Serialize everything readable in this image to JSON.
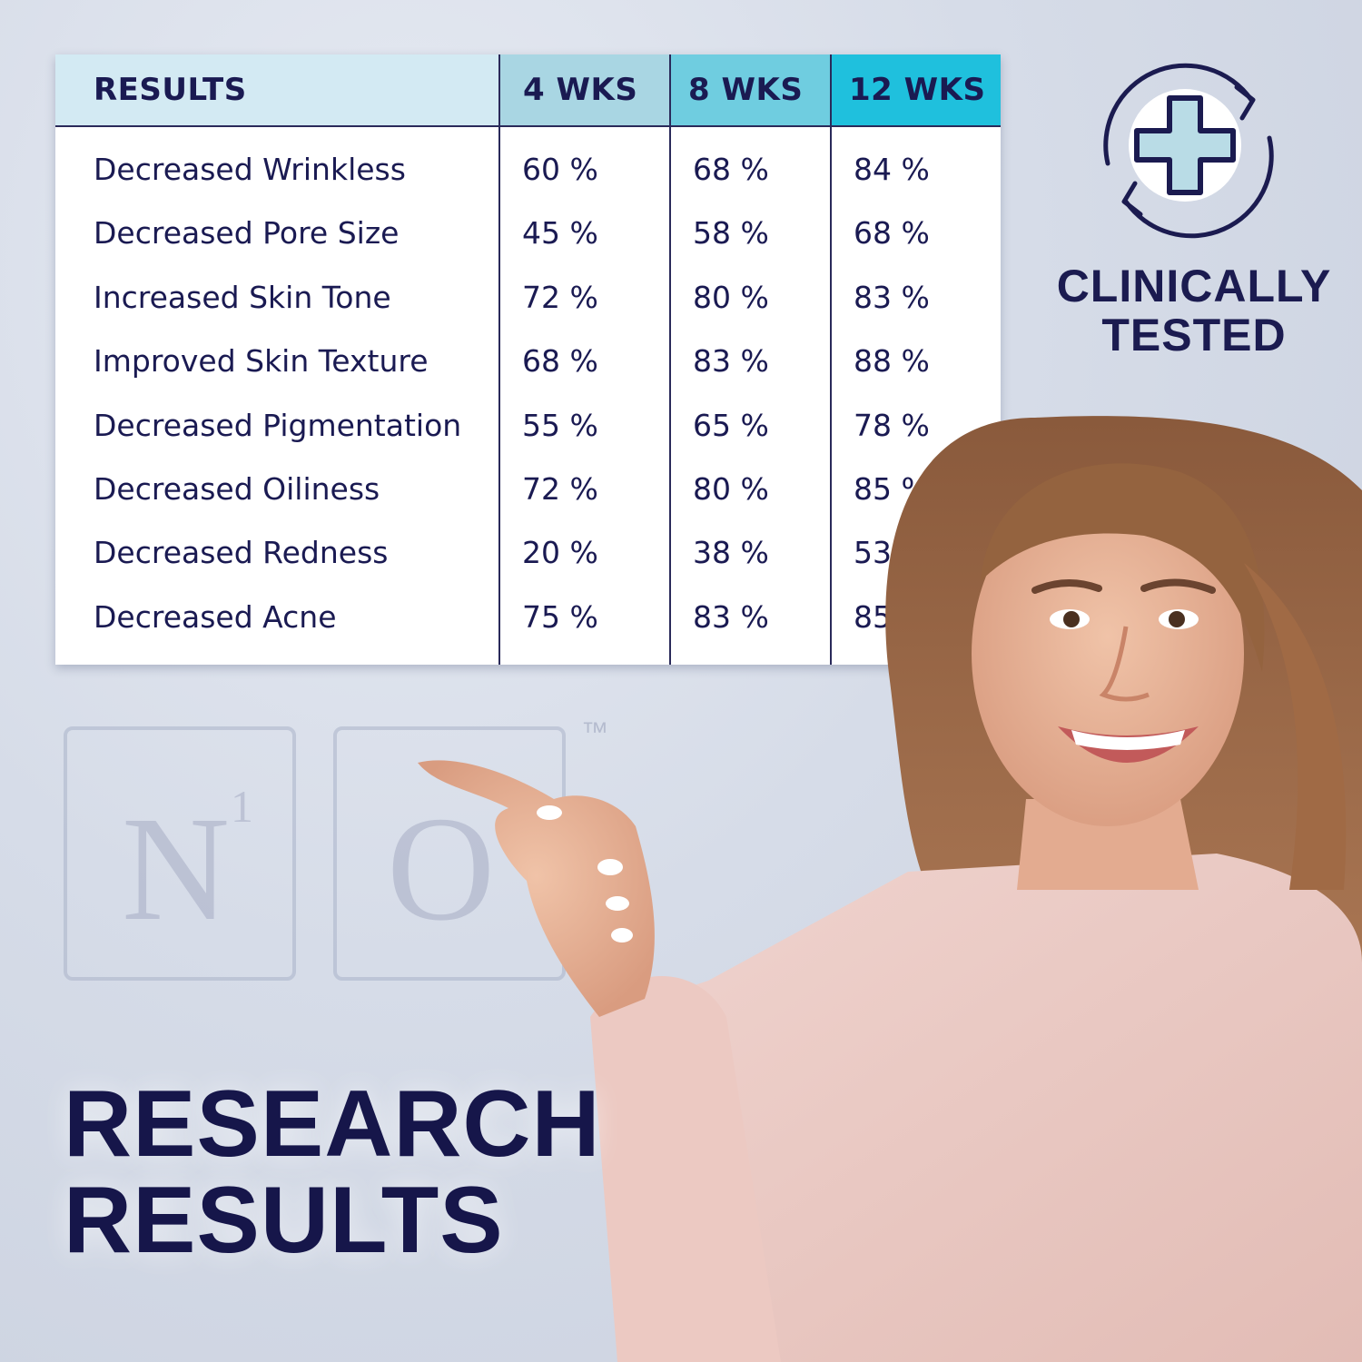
{
  "table": {
    "headers": [
      "RESULTS",
      "4 WKS",
      "8 WKS",
      "12 WKS"
    ],
    "rows": [
      {
        "label": "Decreased Wrinkless",
        "w4": "60 %",
        "w8": "68 %",
        "w12": "84 %"
      },
      {
        "label": "Decreased Pore Size",
        "w4": "45 %",
        "w8": "58 %",
        "w12": "68 %"
      },
      {
        "label": "Increased Skin Tone",
        "w4": "72 %",
        "w8": "80 %",
        "w12": "83 %"
      },
      {
        "label": "Improved Skin Texture",
        "w4": "68 %",
        "w8": "83 %",
        "w12": "88 %"
      },
      {
        "label": "Decreased Pigmentation",
        "w4": "55 %",
        "w8": "65 %",
        "w12": "78 %"
      },
      {
        "label": "Decreased Oiliness",
        "w4": "72 %",
        "w8": "80 %",
        "w12": "85 %"
      },
      {
        "label": "Decreased Redness",
        "w4": "20 %",
        "w8": "38 %",
        "w12": "53%"
      },
      {
        "label": "Decreased Acne",
        "w4": "75 %",
        "w8": "83 %",
        "w12": "85 %"
      }
    ]
  },
  "badge": {
    "icon": "medical-cross-refresh-icon",
    "line1": "CLINICALLY",
    "line2": "TESTED"
  },
  "logo": {
    "letter1": "N",
    "superscript": "1",
    "letter2": "O",
    "trademark": "™"
  },
  "headline": {
    "line1": "RESEARCH",
    "line2": "RESULTS"
  },
  "colors": {
    "navy": "#1a1a52",
    "header_light": "#d3eaf3",
    "header_4wks": "#a9d6e3",
    "header_8wks": "#6fcde0",
    "header_12wks": "#1fc0dd",
    "icon_cross_fill": "#b9dce6"
  },
  "photo": {
    "subject": "smiling-woman-pointing-photo"
  }
}
